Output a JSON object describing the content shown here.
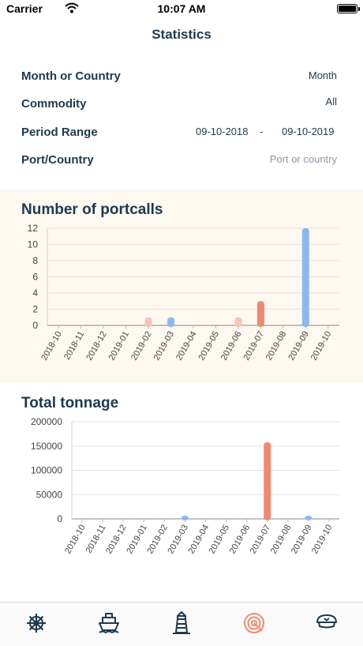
{
  "status_bar": {
    "carrier": "Carrier",
    "time": "10:07 AM"
  },
  "header": {
    "title": "Statistics"
  },
  "filters": {
    "month_or_country": {
      "label": "Month or Country",
      "value": "Month"
    },
    "commodity": {
      "label": "Commodity",
      "value": "All"
    },
    "period_range": {
      "label": "Period Range",
      "start": "09-10-2018",
      "separator": "-",
      "end": "09-10-2019"
    },
    "port_country": {
      "label": "Port/Country",
      "placeholder": "Port or country"
    }
  },
  "charts": {
    "portcalls_title": "Number of portcalls",
    "tonnage_title": "Total tonnage"
  },
  "chart_data": [
    {
      "type": "bar",
      "title": "Number of portcalls",
      "categories": [
        "2018-10",
        "2018-11",
        "2018-12",
        "2019-01",
        "2019-02",
        "2019-03",
        "2019-04",
        "2019-05",
        "2019-06",
        "2019-07",
        "2019-08",
        "2019-09",
        "2019-10"
      ],
      "values": [
        0,
        0,
        0,
        0,
        1,
        1,
        0,
        0,
        1,
        3,
        0,
        12,
        0
      ],
      "bar_colors": [
        "#f6a694",
        "#f6a694",
        "#f6a694",
        "#f6a694",
        "#f8c5b6",
        "#8bb8f0",
        "#f6a694",
        "#f6a694",
        "#f8c5b6",
        "#ef8a72",
        "#f6a694",
        "#8bb8f0",
        "#f6a694"
      ],
      "yticks": [
        0,
        2,
        4,
        6,
        8,
        10,
        12
      ],
      "ylim": [
        0,
        12
      ],
      "grid": true
    },
    {
      "type": "bar",
      "title": "Total tonnage",
      "categories": [
        "2018-10",
        "2018-11",
        "2018-12",
        "2019-01",
        "2019-02",
        "2019-03",
        "2019-04",
        "2019-05",
        "2019-06",
        "2019-07",
        "2019-08",
        "2019-09",
        "2019-10"
      ],
      "values": [
        0,
        0,
        0,
        0,
        0,
        1000,
        0,
        0,
        0,
        158000,
        0,
        1000,
        0
      ],
      "bar_colors": [
        "#f6a694",
        "#f6a694",
        "#f6a694",
        "#f6a694",
        "#f6a694",
        "#8bb8f0",
        "#f6a694",
        "#f6a694",
        "#f6a694",
        "#ef8a72",
        "#f6a694",
        "#8bb8f0",
        "#f6a694"
      ],
      "yticks": [
        0,
        50000,
        100000,
        150000,
        200000
      ],
      "ylim": [
        0,
        200000
      ],
      "grid": true
    }
  ],
  "tab_bar": {
    "items": [
      {
        "icon": "ship-wheel-icon"
      },
      {
        "icon": "ship-icon"
      },
      {
        "icon": "lighthouse-icon"
      },
      {
        "icon": "target-icon",
        "active": true
      },
      {
        "icon": "captain-hat-icon"
      }
    ],
    "active_color": "#ef8a72",
    "inactive_color": "#1d3a4f"
  }
}
